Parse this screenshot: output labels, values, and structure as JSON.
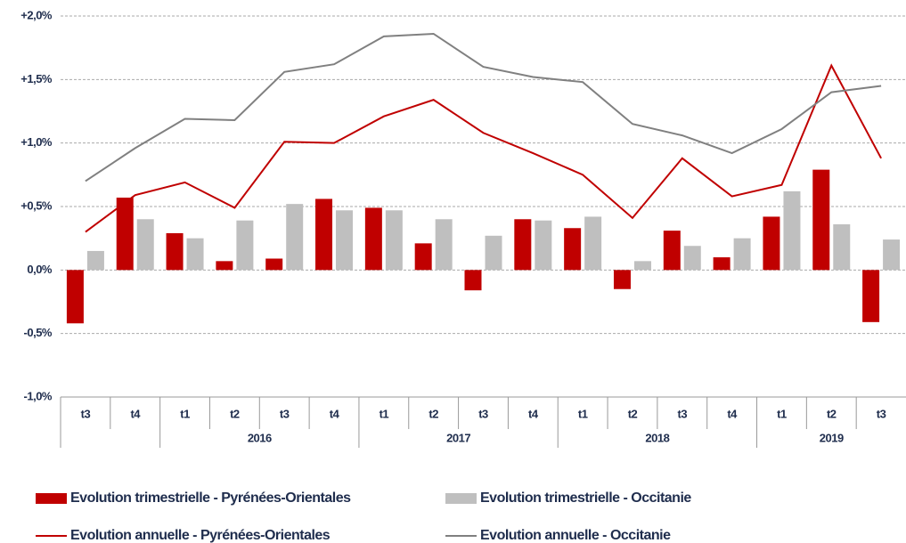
{
  "chart_data": {
    "type": "bar",
    "categories": [
      "t3",
      "t4",
      "t1",
      "t2",
      "t3",
      "t4",
      "t1",
      "t2",
      "t3",
      "t4",
      "t1",
      "t2",
      "t3",
      "t4",
      "t1",
      "t2",
      "t3"
    ],
    "years": [
      null,
      null,
      "2016",
      "2016",
      "2016",
      "2016",
      "2017",
      "2017",
      "2017",
      "2017",
      "2018",
      "2018",
      "2018",
      "2018",
      "2019",
      "2019",
      "2019"
    ],
    "series": [
      {
        "name": "Evolution trimestrielle - Pyrénées-Orientales",
        "type": "bar",
        "color": "#c00000",
        "values": [
          -0.42,
          0.57,
          0.29,
          0.07,
          0.09,
          0.56,
          0.49,
          0.21,
          -0.16,
          0.4,
          0.33,
          -0.15,
          0.31,
          0.1,
          0.42,
          0.79,
          -0.41
        ]
      },
      {
        "name": "Evolution trimestrielle - Occitanie",
        "type": "bar",
        "color": "#bfbfbf",
        "values": [
          0.15,
          0.4,
          0.25,
          0.39,
          0.52,
          0.47,
          0.47,
          0.4,
          0.27,
          0.39,
          0.42,
          0.07,
          0.19,
          0.25,
          0.62,
          0.36,
          0.24
        ]
      },
      {
        "name": "Evolution annuelle - Pyrénées-Orientales",
        "type": "line",
        "color": "#c00000",
        "values": [
          0.3,
          0.59,
          0.69,
          0.49,
          1.01,
          1.0,
          1.21,
          1.34,
          1.08,
          0.92,
          0.75,
          0.41,
          0.88,
          0.58,
          0.67,
          1.61,
          0.88
        ]
      },
      {
        "name": "Evolution annuelle - Occitanie",
        "type": "line",
        "color": "#808080",
        "values": [
          0.7,
          0.96,
          1.19,
          1.18,
          1.56,
          1.62,
          1.84,
          1.86,
          1.6,
          1.52,
          1.48,
          1.15,
          1.06,
          0.92,
          1.11,
          1.4,
          1.45
        ]
      }
    ],
    "ylim": [
      -1.0,
      2.0
    ],
    "yticks": [
      {
        "value": -1.0,
        "label": "-1,0%"
      },
      {
        "value": -0.5,
        "label": "-0,5%"
      },
      {
        "value": 0,
        "label": "0,0%"
      },
      {
        "value": 0.5,
        "label": "+0,5%"
      },
      {
        "value": 1.0,
        "label": "+1,0%"
      },
      {
        "value": 1.5,
        "label": "+1,5%"
      },
      {
        "value": 2.0,
        "label": "+2,0%"
      }
    ],
    "grid": true
  }
}
